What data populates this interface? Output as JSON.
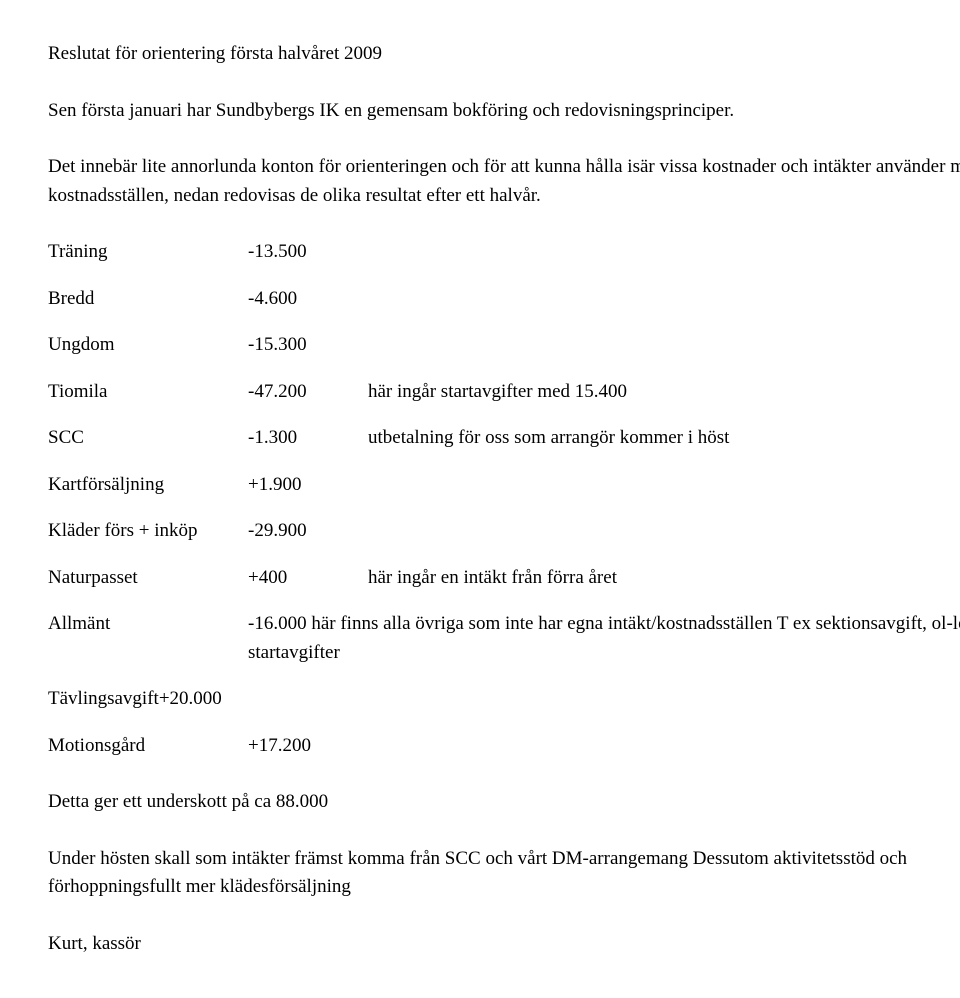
{
  "title": "Reslutat för orientering första halvåret 2009",
  "intro1": "Sen första januari har Sundbybergs IK en gemensam bokföring och redovisningsprinciper.",
  "intro2": "Det innebär lite annorlunda konton för orienteringen och för att kunna hålla isär vissa kostnader och intäkter använder man kostnadsställen, nedan redovisas de olika resultat efter ett halvår.",
  "rows": {
    "traning": {
      "label": "Träning",
      "value": "-13.500",
      "note": ""
    },
    "bredd": {
      "label": "Bredd",
      "value": "-4.600",
      "note": ""
    },
    "ungdom": {
      "label": "Ungdom",
      "value": "-15.300",
      "note": ""
    },
    "tiomila": {
      "label": "Tiomila",
      "value": "-47.200",
      "note": "här ingår startavgifter med 15.400"
    },
    "scc": {
      "label": "SCC",
      "value": "-1.300",
      "note": "utbetalning för oss som arrangör kommer i höst"
    },
    "kartforsaljning": {
      "label": "Kartförsäljning",
      "value": "+1.900",
      "note": ""
    },
    "klader": {
      "label": "Kläder förs + inköp",
      "value": "-29.900",
      "note": ""
    },
    "naturpasset": {
      "label": "Naturpasset",
      "value": "+400",
      "note": "här ingår en intäkt från förra året"
    },
    "allmant": {
      "label": "Allmänt",
      "value": "-16.000",
      "note": "här finns alla övriga som inte har egna intäkt/kostnadsställen  T ex sektionsavgift, ol-lotteri, startavgifter"
    },
    "tavlingsavgift": {
      "label": "Tävlingsavgift",
      "value": "+20.000",
      "note": ""
    },
    "motionsgard": {
      "label": "Motionsgård",
      "value": "+17.200",
      "note": ""
    }
  },
  "underskott": "Detta ger ett underskott på ca 88.000",
  "closing": "Under hösten skall som intäkter främst komma från SCC och vårt DM-arrangemang Dessutom aktivitetsstöd och förhoppningsfullt mer klädesförsäljning",
  "signoff": "Kurt, kassör"
}
